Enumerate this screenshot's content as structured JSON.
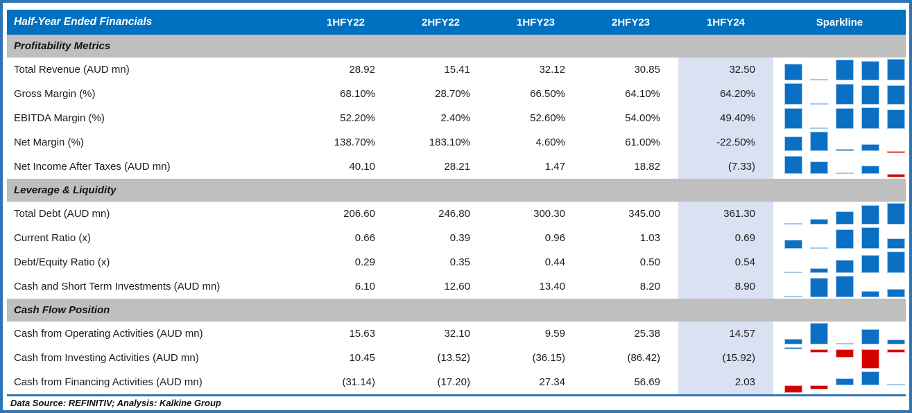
{
  "colors": {
    "header_bg": "#0070C0",
    "section_bg": "#BFBFBF",
    "highlight_bg": "#D9E1F2",
    "frame_border": "#2E75B6",
    "bar_positive": "#0B70C4",
    "bar_positive_edge": "#A6C9E8",
    "bar_negative": "#D40000",
    "bar_negative_edge": "#F0A8A8"
  },
  "chart_data": {
    "type": "table",
    "title": "Half-Year Ended Financials",
    "columns": [
      "1HFY22",
      "2HFY22",
      "1HFY23",
      "2HFY23",
      "1HFY24"
    ],
    "sparkline_label": "Sparkline",
    "highlight_column": "1HFY24",
    "sparkline_note": "per-row mini column chart of the five period values; blue = positive, red = negative",
    "sections": [
      {
        "heading": "Profitability Metrics",
        "rows": [
          {
            "label": "Total Revenue (AUD mn)",
            "display": [
              "28.92",
              "15.41",
              "32.12",
              "30.85",
              "32.50"
            ],
            "values": [
              28.92,
              15.41,
              32.12,
              30.85,
              32.5
            ]
          },
          {
            "label": "Gross Margin (%)",
            "display": [
              "68.10%",
              "28.70%",
              "66.50%",
              "64.10%",
              "64.20%"
            ],
            "values": [
              68.1,
              28.7,
              66.5,
              64.1,
              64.2
            ]
          },
          {
            "label": "EBITDA Margin (%)",
            "display": [
              "52.20%",
              "2.40%",
              "52.60%",
              "54.00%",
              "49.40%"
            ],
            "values": [
              52.2,
              2.4,
              52.6,
              54.0,
              49.4
            ]
          },
          {
            "label": "Net Margin (%)",
            "display": [
              "138.70%",
              "183.10%",
              "4.60%",
              "61.00%",
              "-22.50%"
            ],
            "values": [
              138.7,
              183.1,
              4.6,
              61.0,
              -22.5
            ]
          },
          {
            "label": "Net Income After Taxes (AUD mn)",
            "display": [
              "40.10",
              "28.21",
              "1.47",
              "18.82",
              "(7.33)"
            ],
            "values": [
              40.1,
              28.21,
              1.47,
              18.82,
              -7.33
            ]
          }
        ]
      },
      {
        "heading": "Leverage & Liquidity",
        "rows": [
          {
            "label": "Total Debt (AUD mn)",
            "display": [
              "206.60",
              "246.80",
              "300.30",
              "345.00",
              "361.30"
            ],
            "values": [
              206.6,
              246.8,
              300.3,
              345.0,
              361.3
            ]
          },
          {
            "label": "Current Ratio (x)",
            "display": [
              "0.66",
              "0.39",
              "0.96",
              "1.03",
              "0.69"
            ],
            "values": [
              0.66,
              0.39,
              0.96,
              1.03,
              0.69
            ]
          },
          {
            "label": "Debt/Equity Ratio (x)",
            "display": [
              "0.29",
              "0.35",
              "0.44",
              "0.50",
              "0.54"
            ],
            "values": [
              0.29,
              0.35,
              0.44,
              0.5,
              0.54
            ]
          },
          {
            "label": "Cash and Short Term Investments (AUD mn)",
            "display": [
              "6.10",
              "12.60",
              "13.40",
              "8.20",
              "8.90"
            ],
            "values": [
              6.1,
              12.6,
              13.4,
              8.2,
              8.9
            ]
          }
        ]
      },
      {
        "heading": "Cash Flow Position",
        "rows": [
          {
            "label": "Cash from Operating Activities (AUD mn)",
            "display": [
              "15.63",
              "32.10",
              "9.59",
              "25.38",
              "14.57"
            ],
            "values": [
              15.63,
              32.1,
              9.59,
              25.38,
              14.57
            ]
          },
          {
            "label": "Cash from Investing Activities (AUD mn)",
            "display": [
              "10.45",
              "(13.52)",
              "(36.15)",
              "(86.42)",
              "(15.92)"
            ],
            "values": [
              10.45,
              -13.52,
              -36.15,
              -86.42,
              -15.92
            ]
          },
          {
            "label": "Cash from Financing Activities (AUD mn)",
            "display": [
              "(31.14)",
              "(17.20)",
              "27.34",
              "56.69",
              "2.03"
            ],
            "values": [
              -31.14,
              -17.2,
              27.34,
              56.69,
              2.03
            ]
          }
        ]
      }
    ],
    "footer": "Data Source: REFINITIV; Analysis: Kalkine Group"
  }
}
